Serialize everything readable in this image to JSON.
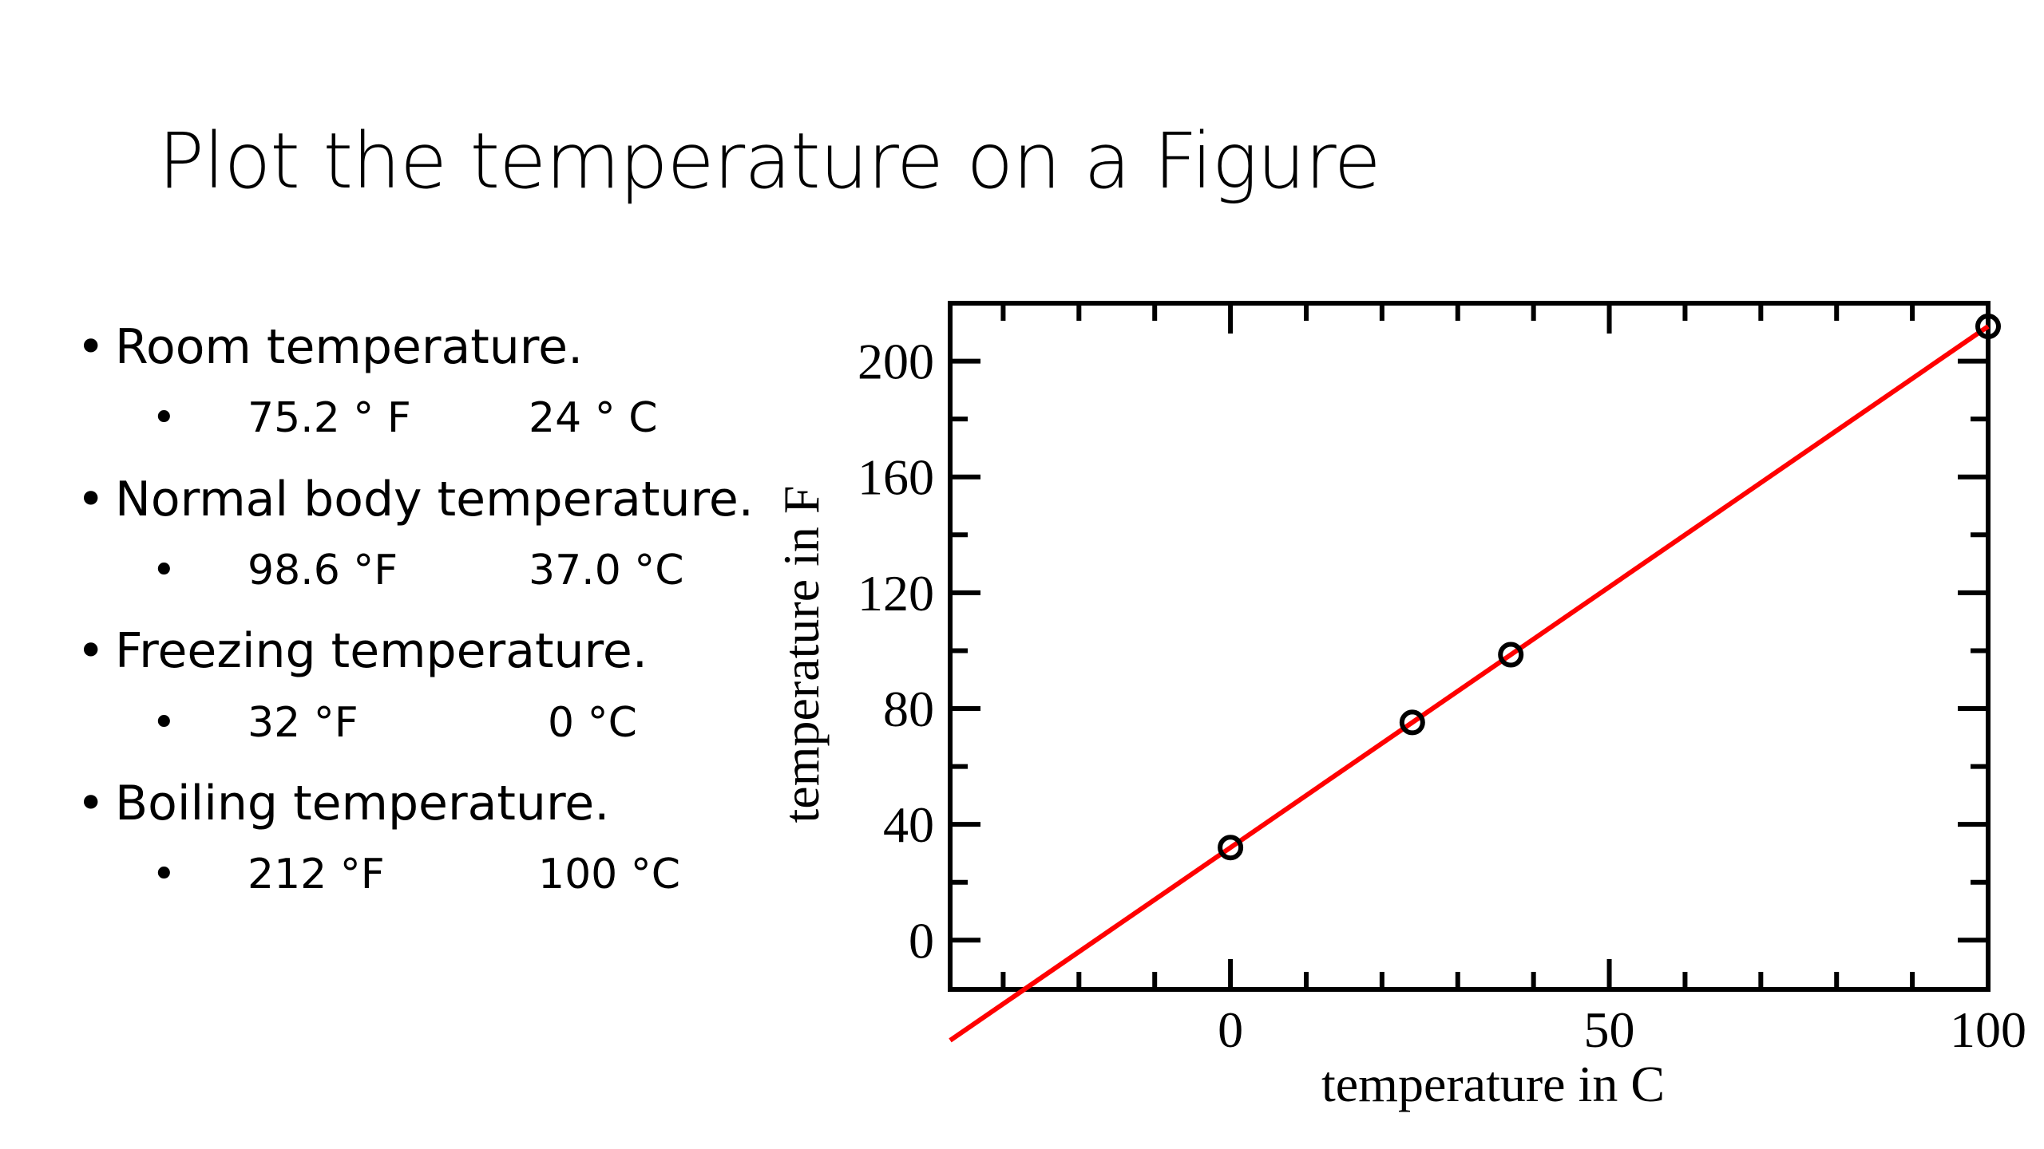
{
  "slide": {
    "title": "Plot the temperature on a Figure"
  },
  "bullets": [
    {
      "label": "Room temperature.",
      "fahrenheit": "75.2 ° F",
      "celsius": "24  ° C"
    },
    {
      "label": "Normal body temperature.",
      "fahrenheit": "98.6 °F",
      "celsius": "37.0 °C"
    },
    {
      "label": "Freezing temperature.",
      "fahrenheit": "32 °F",
      "celsius": "0 °C"
    },
    {
      "label": "Boiling temperature.",
      "fahrenheit": "212 °F",
      "celsius": "100 °C"
    }
  ],
  "bullet_glyph": "•",
  "chart_data": {
    "type": "scatter",
    "title": "",
    "xlabel": "temperature in C",
    "ylabel": "temperature in F",
    "xlim": [
      -37,
      100
    ],
    "ylim": [
      -17,
      220
    ],
    "x_ticks": [
      0,
      50,
      100
    ],
    "y_ticks": [
      0,
      40,
      80,
      120,
      160,
      200
    ],
    "x_minor_step": 10,
    "y_minor_step": 20,
    "points": [
      {
        "x": 24,
        "y": 75.2
      },
      {
        "x": 37,
        "y": 98.6
      },
      {
        "x": 0,
        "y": 32
      },
      {
        "x": 100,
        "y": 212
      }
    ],
    "fit_line": {
      "slope": 1.8,
      "intercept": 32,
      "x_range": [
        -37,
        100
      ]
    },
    "colors": {
      "line": "#ff0000",
      "points": "#000000",
      "axes": "#000000"
    },
    "grid": false,
    "legend": "none"
  }
}
